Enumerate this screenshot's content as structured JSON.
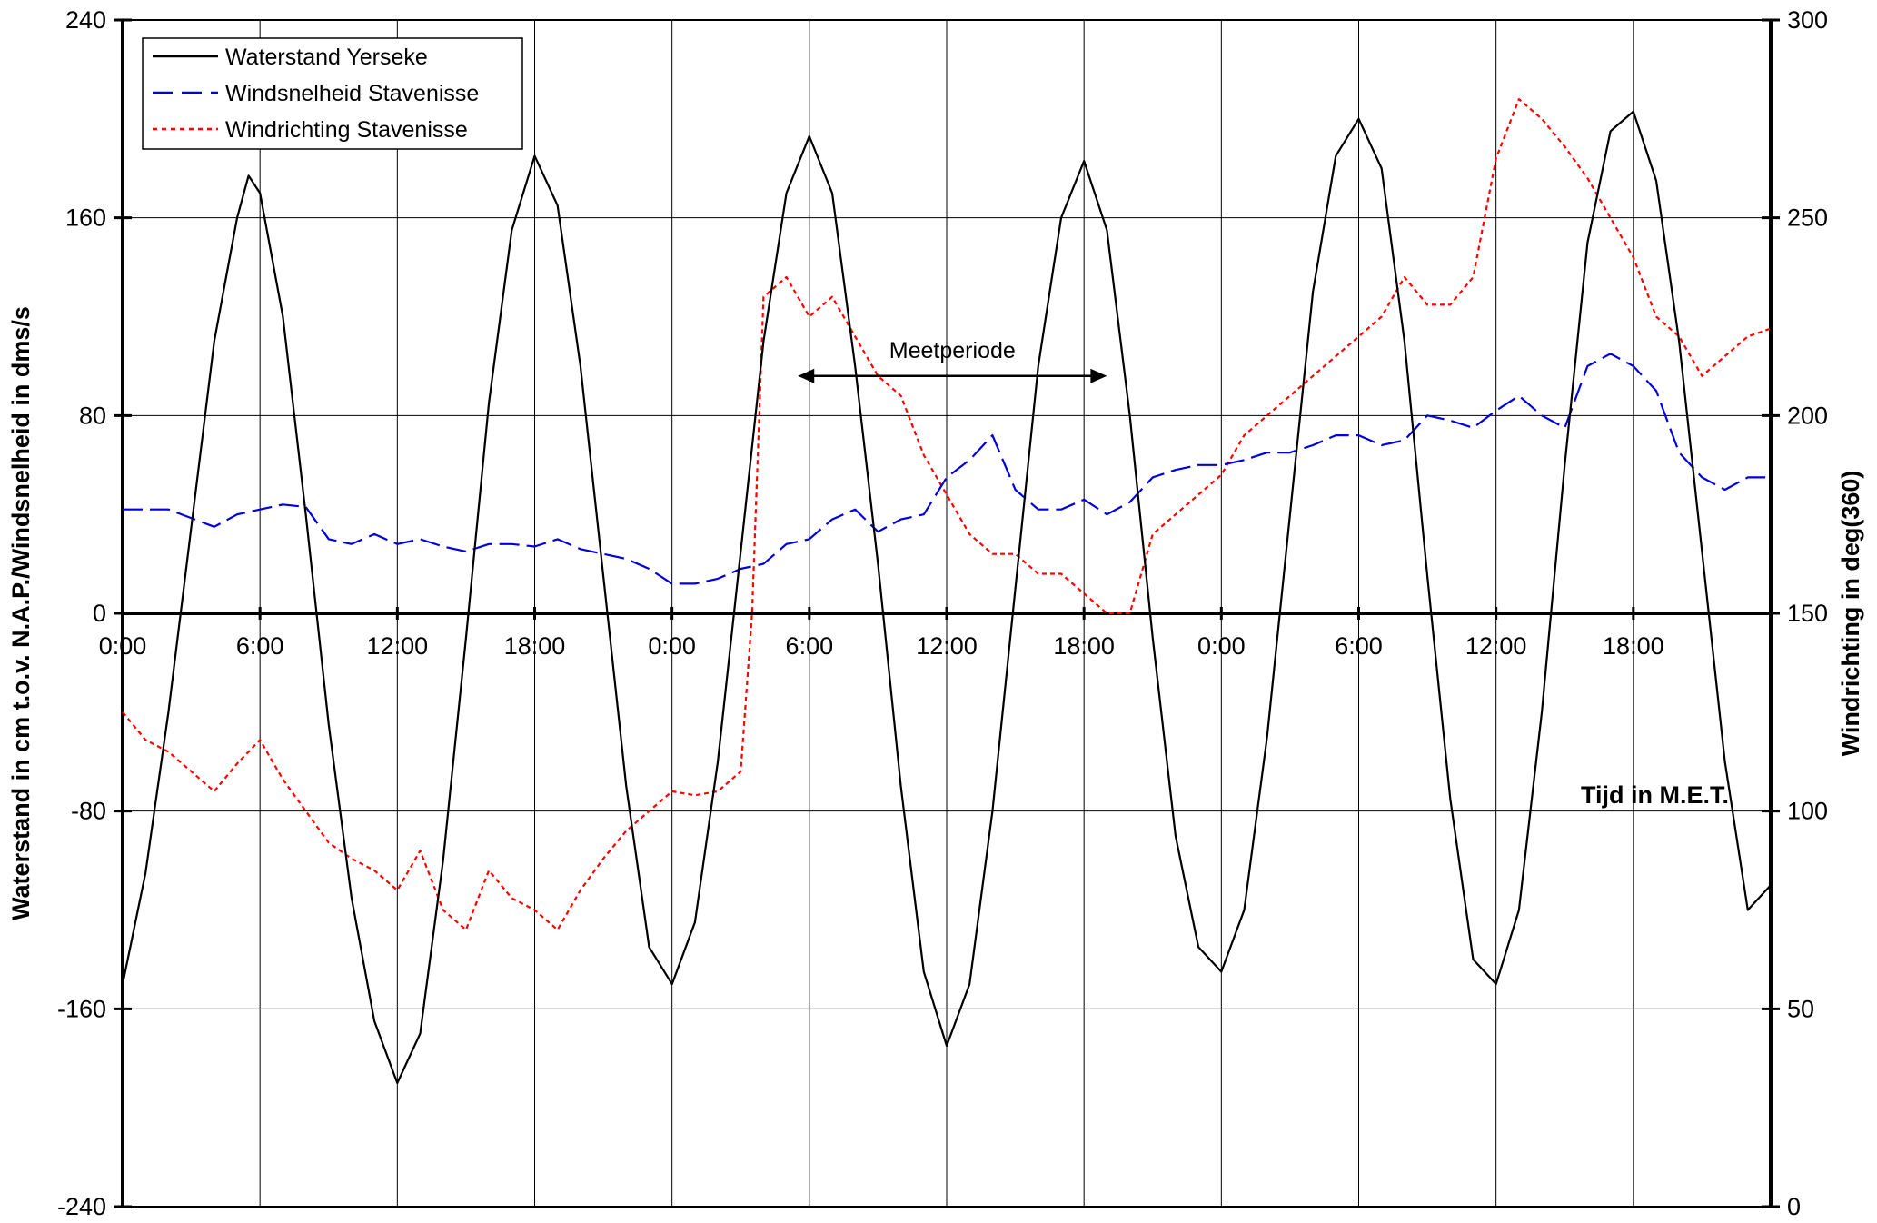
{
  "chart_data": {
    "type": "line",
    "title": "",
    "ylabel": "Waterstand in cm t.o.v. N.A.P./Windsnelheid in dms/s",
    "y2label": "Windrichting in deg(360)",
    "xlabel": "Tijd in M.E.T.",
    "x_unit": "hours since start (0 = first 0:00)",
    "xlim": [
      0,
      72
    ],
    "ylim": [
      -240,
      240
    ],
    "y2lim": [
      0,
      300
    ],
    "yticks": [
      "-240",
      "-160",
      "-80",
      "0",
      "80",
      "160",
      "240"
    ],
    "y2ticks": [
      "0",
      "50",
      "100",
      "150",
      "200",
      "250",
      "300"
    ],
    "xticks": [
      "0:00",
      "6:00",
      "12:00",
      "18:00",
      "0:00",
      "6:00",
      "12:00",
      "18:00",
      "0:00",
      "6:00",
      "12:00",
      "18:00"
    ],
    "xtick_hours": [
      0,
      6,
      12,
      18,
      24,
      30,
      36,
      42,
      48,
      54,
      60,
      66
    ],
    "grid": true,
    "legend_position": "top-left",
    "annotation": {
      "text": "Meetperiode",
      "x_start": 29.5,
      "x_end": 43,
      "y": 96
    },
    "series": [
      {
        "name": "Waterstand Yerseke",
        "axis": "left",
        "color": "#000000",
        "style": "solid",
        "x": [
          0,
          1,
          2,
          3,
          4,
          5,
          5.5,
          6,
          7,
          8,
          9,
          10,
          11,
          12,
          13,
          14,
          15,
          16,
          17,
          18,
          19,
          20,
          21,
          22,
          23,
          24,
          25,
          26,
          27,
          28,
          29,
          30,
          31,
          32,
          33,
          34,
          35,
          36,
          37,
          38,
          39,
          40,
          41,
          42,
          43,
          44,
          45,
          46,
          47,
          48,
          49,
          50,
          51,
          52,
          53,
          54,
          55,
          56,
          57,
          58,
          59,
          60,
          61,
          62,
          63,
          64,
          65,
          66,
          67,
          68,
          69,
          70,
          71,
          72
        ],
        "y": [
          -150,
          -105,
          -40,
          35,
          110,
          160,
          177,
          170,
          120,
          40,
          -45,
          -115,
          -165,
          -190,
          -170,
          -100,
          -10,
          85,
          155,
          185,
          165,
          100,
          15,
          -70,
          -135,
          -150,
          -125,
          -60,
          25,
          110,
          170,
          193,
          170,
          100,
          20,
          -70,
          -145,
          -175,
          -150,
          -80,
          10,
          100,
          160,
          183,
          155,
          80,
          -10,
          -90,
          -135,
          -145,
          -120,
          -50,
          40,
          130,
          185,
          200,
          180,
          110,
          15,
          -75,
          -140,
          -150,
          -120,
          -40,
          60,
          150,
          195,
          203,
          175,
          110,
          25,
          -60,
          -120,
          -110
        ]
      },
      {
        "name": "Windsnelheid Stavenisse",
        "axis": "left",
        "color": "#0000dd",
        "style": "dashed",
        "x": [
          0,
          2,
          4,
          5,
          6,
          7,
          8,
          9,
          10,
          11,
          12,
          13,
          14,
          15,
          16,
          17,
          18,
          19,
          20,
          21,
          22,
          23,
          24,
          25,
          26,
          27,
          28,
          29,
          30,
          31,
          32,
          33,
          34,
          35,
          36,
          37,
          38,
          39,
          40,
          41,
          42,
          43,
          44,
          45,
          46,
          47,
          48,
          49,
          50,
          51,
          52,
          53,
          54,
          55,
          56,
          57,
          58,
          59,
          60,
          61,
          62,
          63,
          64,
          65,
          66,
          67,
          68,
          69,
          70,
          71,
          72
        ],
        "y": [
          42,
          42,
          35,
          40,
          42,
          44,
          43,
          30,
          28,
          32,
          28,
          30,
          27,
          25,
          28,
          28,
          27,
          30,
          26,
          24,
          22,
          18,
          12,
          12,
          14,
          18,
          20,
          28,
          30,
          38,
          42,
          33,
          38,
          40,
          55,
          62,
          72,
          50,
          42,
          42,
          46,
          40,
          45,
          55,
          58,
          60,
          60,
          62,
          65,
          65,
          68,
          72,
          72,
          68,
          70,
          80,
          78,
          75,
          82,
          88,
          80,
          75,
          100,
          105,
          100,
          90,
          65,
          55,
          50,
          55,
          55
        ]
      },
      {
        "name": "Windrichting Stavenisse",
        "axis": "right",
        "color": "#ff0000",
        "style": "dotted",
        "x": [
          0,
          1,
          2,
          3,
          4,
          5,
          6,
          7,
          8,
          9,
          10,
          11,
          12,
          13,
          14,
          15,
          16,
          17,
          18,
          19,
          20,
          21,
          22,
          23,
          24,
          25,
          26,
          27,
          27.5,
          28,
          29,
          30,
          31,
          32,
          33,
          34,
          35,
          36,
          37,
          38,
          39,
          40,
          41,
          42,
          43,
          44,
          45,
          46,
          47,
          48,
          49,
          50,
          51,
          52,
          53,
          54,
          55,
          56,
          57,
          58,
          59,
          60,
          61,
          62,
          63,
          64,
          65,
          66,
          67,
          68,
          69,
          70,
          71,
          72
        ],
        "y": [
          125,
          118,
          115,
          110,
          105,
          112,
          118,
          108,
          100,
          92,
          88,
          85,
          80,
          90,
          75,
          70,
          85,
          78,
          75,
          70,
          80,
          88,
          95,
          100,
          105,
          104,
          105,
          110,
          150,
          230,
          235,
          225,
          230,
          220,
          210,
          205,
          190,
          180,
          170,
          165,
          165,
          160,
          160,
          155,
          150,
          150,
          170,
          175,
          180,
          185,
          195,
          200,
          205,
          210,
          215,
          220,
          225,
          235,
          228,
          228,
          235,
          265,
          280,
          275,
          268,
          260,
          250,
          240,
          225,
          220,
          210,
          215,
          220,
          222
        ]
      }
    ]
  }
}
